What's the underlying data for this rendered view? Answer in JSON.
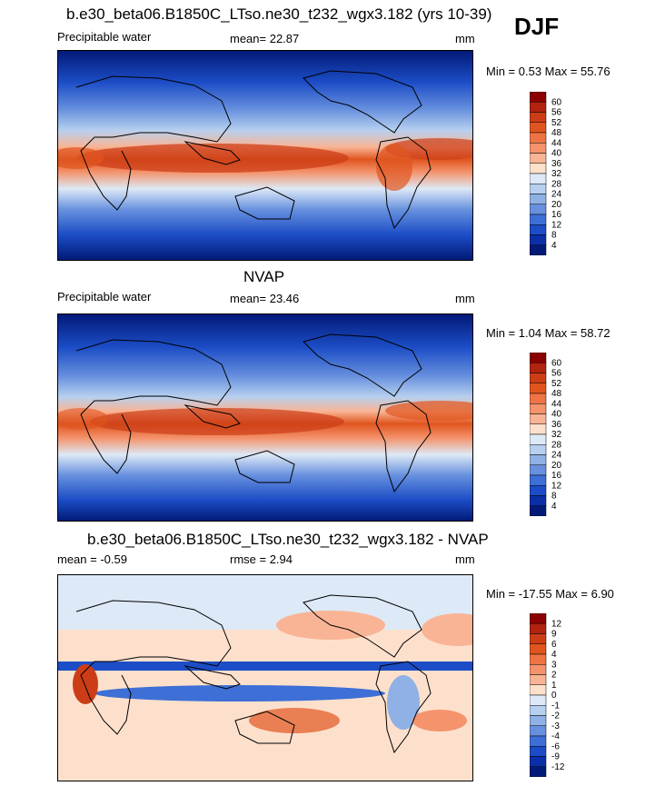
{
  "season": "DJF",
  "panels": [
    {
      "title": "b.e30_beta06.B1850C_LTso.ne30_t232_wgx3.182 (yrs 10-39)",
      "left_label": "Precipitable water",
      "center_label": "mean=  22.87",
      "right_label": "mm",
      "minmax": "Min =   0.53 Max =  55.76",
      "colorbar": {
        "labels": [
          "60",
          "56",
          "52",
          "48",
          "44",
          "40",
          "36",
          "32",
          "28",
          "24",
          "20",
          "16",
          "12",
          "8",
          "4"
        ],
        "colors": [
          "#8b0000",
          "#b22310",
          "#cc3d17",
          "#e0551f",
          "#ee7445",
          "#f4936c",
          "#f9b495",
          "#fde0cc",
          "#dde9f6",
          "#b7d0ef",
          "#8fb1e6",
          "#6790de",
          "#3d6fd6",
          "#1c4dc6",
          "#0b2fa8",
          "#021a78"
        ]
      }
    },
    {
      "title": "NVAP",
      "left_label": "Precipitable water",
      "center_label": "mean=  23.46",
      "right_label": "mm",
      "minmax": "Min =   1.04 Max =  58.72",
      "colorbar": {
        "labels": [
          "60",
          "56",
          "52",
          "48",
          "44",
          "40",
          "36",
          "32",
          "28",
          "24",
          "20",
          "16",
          "12",
          "8",
          "4"
        ],
        "colors": [
          "#8b0000",
          "#b22310",
          "#cc3d17",
          "#e0551f",
          "#ee7445",
          "#f4936c",
          "#f9b495",
          "#fde0cc",
          "#dde9f6",
          "#b7d0ef",
          "#8fb1e6",
          "#6790de",
          "#3d6fd6",
          "#1c4dc6",
          "#0b2fa8",
          "#021a78"
        ]
      }
    },
    {
      "title": "b.e30_beta06.B1850C_LTso.ne30_t232_wgx3.182 - NVAP",
      "left_label": "mean =  -0.59",
      "center_label": "rmse =   2.94",
      "right_label": "mm",
      "minmax": "Min = -17.55 Max =   6.90",
      "colorbar": {
        "labels": [
          "12",
          "9",
          "6",
          "4",
          "3",
          "2",
          "1",
          "0",
          "-1",
          "-2",
          "-3",
          "-4",
          "-6",
          "-9",
          "-12"
        ],
        "colors": [
          "#8b0000",
          "#b22310",
          "#cc3d17",
          "#e0551f",
          "#ee7445",
          "#f4936c",
          "#f9b495",
          "#fde0cc",
          "#dde9f6",
          "#b7d0ef",
          "#8fb1e6",
          "#6790de",
          "#3d6fd6",
          "#1c4dc6",
          "#0b2fa8",
          "#021a78"
        ]
      }
    }
  ],
  "chart_data": [
    {
      "type": "heatmap",
      "title": "b.e30_beta06.B1850C_LTso.ne30_t232_wgx3.182 (yrs 10-39)",
      "variable": "Precipitable water",
      "units": "mm",
      "mean": 22.87,
      "min": 0.53,
      "max": 55.76,
      "levels": [
        4,
        8,
        12,
        16,
        20,
        24,
        28,
        32,
        36,
        40,
        44,
        48,
        52,
        56,
        60
      ]
    },
    {
      "type": "heatmap",
      "title": "NVAP",
      "variable": "Precipitable water",
      "units": "mm",
      "mean": 23.46,
      "min": 1.04,
      "max": 58.72,
      "levels": [
        4,
        8,
        12,
        16,
        20,
        24,
        28,
        32,
        36,
        40,
        44,
        48,
        52,
        56,
        60
      ]
    },
    {
      "type": "heatmap",
      "title": "b.e30_beta06.B1850C_LTso.ne30_t232_wgx3.182 - NVAP",
      "units": "mm",
      "mean": -0.59,
      "rmse": 2.94,
      "min": -17.55,
      "max": 6.9,
      "levels": [
        -12,
        -9,
        -6,
        -4,
        -3,
        -2,
        -1,
        0,
        1,
        2,
        3,
        4,
        6,
        9,
        12
      ]
    }
  ]
}
